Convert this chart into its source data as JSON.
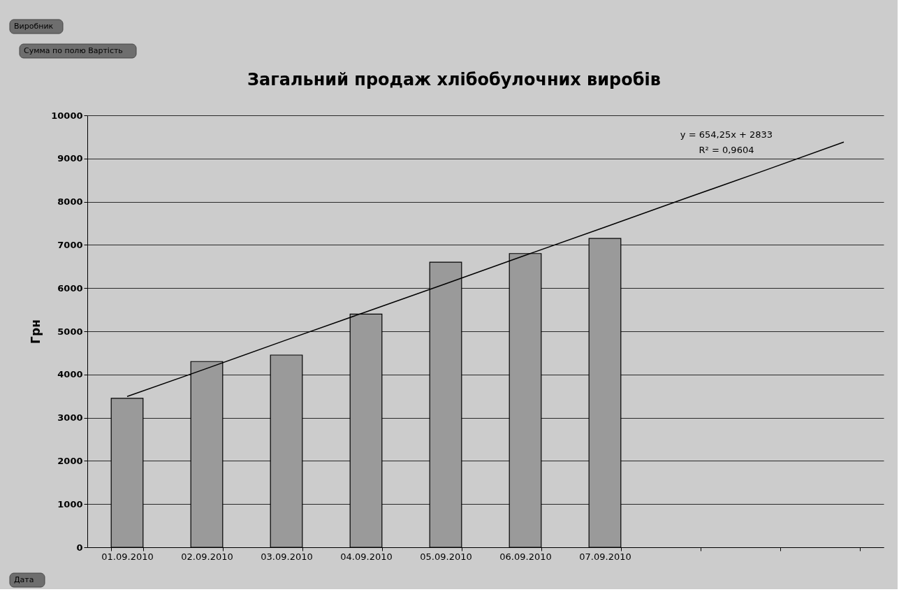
{
  "chart_data": {
    "type": "bar",
    "title": "Загальний продаж хлібобулочних виробів",
    "ylabel": "Грн",
    "categories": [
      "01.09.2010",
      "02.09.2010",
      "03.09.2010",
      "04.09.2010",
      "05.09.2010",
      "06.09.2010",
      "07.09.2010",
      null,
      null,
      null
    ],
    "series": [
      {
        "color": "#9a9a9a",
        "values": [
          3450,
          4300,
          4450,
          5400,
          6600,
          6800,
          7150,
          null,
          null,
          null
        ]
      },
      {
        "type": "line",
        "color": "#000000",
        "values": [
          3490,
          4140,
          4800,
          5450,
          6100,
          6760,
          7410,
          8070,
          8720,
          9380
        ]
      }
    ],
    "ylim": [
      0,
      10000
    ],
    "yticks": [
      0,
      1000,
      2000,
      3000,
      4000,
      5000,
      6000,
      7000,
      8000,
      9000,
      10000
    ],
    "grid": "y",
    "annotations": [
      "Виробник",
      "Сумма по полю Вартість",
      "Дата",
      "y = 654,25x  + 2833",
      "R² = 0,9604"
    ]
  }
}
